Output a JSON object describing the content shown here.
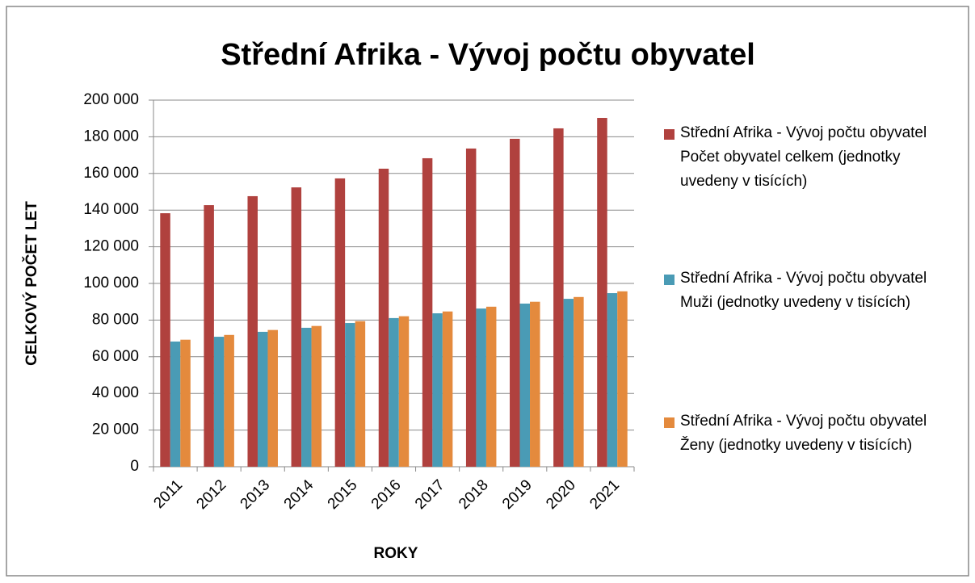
{
  "chart_data": {
    "type": "bar",
    "title": "Střední Afrika - Vývoj počtu obyvatel",
    "x_label": "ROKY",
    "y_label": "CELKOVÝ POČET LET",
    "categories": [
      "2011",
      "2012",
      "2013",
      "2014",
      "2015",
      "2016",
      "2017",
      "2018",
      "2019",
      "2020",
      "2021"
    ],
    "series": [
      {
        "name": "Střední Afrika - Vývoj počtu obyvatel Počet obyvatel celkem (jednotky uvedeny v tisících)",
        "color": "#b0413e",
        "values": [
          138300,
          142700,
          147600,
          152400,
          157300,
          162600,
          168300,
          173600,
          178900,
          184600,
          190300
        ]
      },
      {
        "name": "Střední Afrika - Vývoj počtu obyvatel Muži (jednotky uvedeny v tisících)",
        "color": "#4a9bb5",
        "values": [
          68300,
          70900,
          73600,
          75800,
          78400,
          81100,
          83700,
          86300,
          89000,
          91600,
          94700
        ]
      },
      {
        "name": "Střední Afrika - Vývoj počtu obyvatel Ženy (jednotky uvedeny v tisících)",
        "color": "#e48a3d",
        "values": [
          69300,
          71900,
          74600,
          76800,
          79400,
          82100,
          84700,
          87300,
          90000,
          92600,
          95700
        ]
      }
    ],
    "ylim": [
      0,
      200000
    ],
    "yticks": [
      0,
      {
        "value": 20000,
        "label": "20 000"
      },
      {
        "value": 40000,
        "label": "40 000"
      },
      {
        "value": 60000,
        "label": "60 000"
      },
      {
        "value": 80000,
        "label": "80 000"
      },
      {
        "value": 100000,
        "label": "100 000"
      },
      {
        "value": 120000,
        "label": "120 000"
      },
      {
        "value": 140000,
        "label": "140 000"
      },
      {
        "value": 160000,
        "label": "160 000"
      },
      {
        "value": 180000,
        "label": "180 000"
      },
      {
        "value": 200000,
        "label": "200 000"
      }
    ],
    "grid": true,
    "legend": "right"
  }
}
